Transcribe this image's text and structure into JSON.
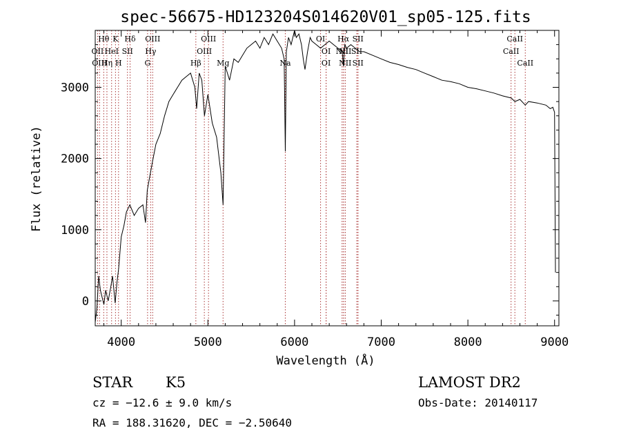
{
  "chart_data": {
    "type": "line",
    "title": "spec-56675-HD123204S014620V01_sp05-125.fits",
    "xlabel": "Wavelength (Å)",
    "ylabel": "Flux (relative)",
    "xlim": [
      3700,
      9050
    ],
    "ylim": [
      -350,
      3800
    ],
    "x_ticks": [
      4000,
      5000,
      6000,
      7000,
      8000,
      9000
    ],
    "y_ticks": [
      0,
      1000,
      2000,
      3000
    ],
    "grid": false,
    "series": [
      {
        "x": [
          3700,
          3720,
          3740,
          3760,
          3780,
          3800,
          3820,
          3850,
          3880,
          3900,
          3930,
          3950,
          3970,
          4000,
          4030,
          4060,
          4100,
          4150,
          4200,
          4250,
          4280,
          4300,
          4330,
          4360,
          4400,
          4450,
          4500,
          4550,
          4600,
          4650,
          4700,
          4750,
          4800,
          4850,
          4870,
          4900,
          4930,
          4960,
          5000,
          5050,
          5100,
          5150,
          5175,
          5200,
          5250,
          5300,
          5350,
          5400,
          5450,
          5500,
          5550,
          5600,
          5650,
          5700,
          5750,
          5800,
          5850,
          5880,
          5893,
          5905,
          5930,
          5960,
          6000,
          6020,
          6050,
          6080,
          6100,
          6120,
          6150,
          6180,
          6200,
          6250,
          6300,
          6350,
          6400,
          6450,
          6500,
          6550,
          6563,
          6580,
          6600,
          6650,
          6700,
          6750,
          6800,
          6900,
          7000,
          7100,
          7200,
          7300,
          7400,
          7500,
          7600,
          7700,
          7800,
          7900,
          8000,
          8100,
          8200,
          8300,
          8400,
          8500,
          8542,
          8600,
          8662,
          8700,
          8800,
          8900,
          8950,
          8980,
          9000,
          9010
        ],
        "y": [
          -300,
          -100,
          350,
          150,
          50,
          -50,
          150,
          0,
          200,
          350,
          -30,
          250,
          450,
          900,
          1050,
          1250,
          1350,
          1200,
          1300,
          1350,
          1100,
          1550,
          1750,
          1950,
          2200,
          2350,
          2600,
          2800,
          2900,
          3000,
          3100,
          3150,
          3200,
          3000,
          2700,
          3200,
          3100,
          2600,
          2900,
          2500,
          2300,
          1800,
          1350,
          3300,
          3100,
          3400,
          3350,
          3450,
          3550,
          3600,
          3650,
          3550,
          3700,
          3600,
          3750,
          3650,
          3550,
          3400,
          2100,
          3500,
          3700,
          3600,
          3800,
          3700,
          3750,
          3600,
          3400,
          3250,
          3500,
          3700,
          3650,
          3600,
          3550,
          3600,
          3650,
          3600,
          3550,
          3500,
          3300,
          3600,
          3550,
          3600,
          3550,
          3500,
          3500,
          3450,
          3400,
          3350,
          3320,
          3280,
          3250,
          3200,
          3150,
          3100,
          3080,
          3050,
          3000,
          2980,
          2950,
          2920,
          2880,
          2850,
          2800,
          2830,
          2750,
          2800,
          2780,
          2750,
          2700,
          2720,
          2650,
          400
        ]
      }
    ],
    "line_markers": [
      {
        "label": "Hθ",
        "x": 3798,
        "row": 0
      },
      {
        "label": "K",
        "x": 3934,
        "row": 0
      },
      {
        "label": "Hδ",
        "x": 4102,
        "row": 0
      },
      {
        "label": "OIII",
        "x": 4363,
        "row": 0
      },
      {
        "label": "OIII",
        "x": 5007,
        "row": 0
      },
      {
        "label": "OI",
        "x": 6300,
        "row": 0
      },
      {
        "label": "Hα",
        "x": 6563,
        "row": 0
      },
      {
        "label": "SII",
        "x": 6731,
        "row": 0
      },
      {
        "label": "CaII",
        "x": 8542,
        "row": 0
      },
      {
        "label": "OII",
        "x": 3727,
        "row": 1
      },
      {
        "label": "HeI",
        "x": 3889,
        "row": 1
      },
      {
        "label": "SII",
        "x": 4072,
        "row": 1
      },
      {
        "label": "Hγ",
        "x": 4340,
        "row": 1
      },
      {
        "label": "OIII",
        "x": 4959,
        "row": 1
      },
      {
        "label": "OI",
        "x": 6364,
        "row": 1
      },
      {
        "label": "NII",
        "x": 6548,
        "row": 1
      },
      {
        "label": "NII",
        "x": 6584,
        "row": 1
      },
      {
        "label": "SII",
        "x": 6717,
        "row": 1
      },
      {
        "label": "CaII",
        "x": 8498,
        "row": 1
      },
      {
        "label": "OIII",
        "x": 3750,
        "row": 2
      },
      {
        "label": "Hη",
        "x": 3835,
        "row": 2
      },
      {
        "label": "H",
        "x": 3969,
        "row": 2
      },
      {
        "label": "G",
        "x": 4304,
        "row": 2
      },
      {
        "label": "Hβ",
        "x": 4861,
        "row": 2
      },
      {
        "label": "Mg",
        "x": 5175,
        "row": 2
      },
      {
        "label": "Na",
        "x": 5893,
        "row": 2
      },
      {
        "label": "OI",
        "x": 6364,
        "row": 2
      },
      {
        "label": "NII",
        "x": 6584,
        "row": 2
      },
      {
        "label": "SII",
        "x": 6731,
        "row": 2
      },
      {
        "label": "CaII",
        "x": 8662,
        "row": 2
      }
    ]
  },
  "info": {
    "object_type": "STAR",
    "subclass": "K5",
    "survey": "LAMOST DR2",
    "cz": "cz = −12.6 ± 9.0 km/s",
    "obs_date": "Obs-Date: 20140117",
    "coords": "RA = 188.31620, DEC =  −2.50640"
  },
  "colors": {
    "marker_line": "#a83232",
    "spectrum": "#000000"
  }
}
